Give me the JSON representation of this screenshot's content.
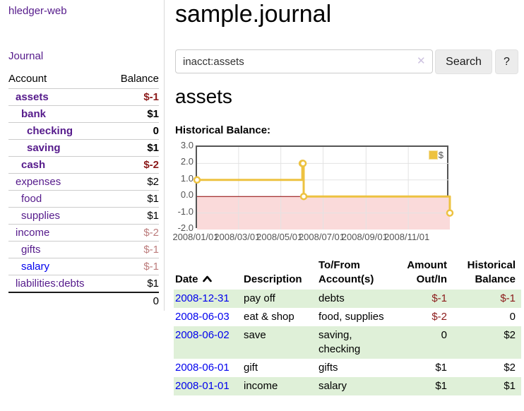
{
  "sidebar": {
    "app_title": "hledger-web",
    "journal_link": "Journal",
    "accounts_header": {
      "account": "Account",
      "balance": "Balance"
    },
    "accounts": [
      {
        "name": "assets",
        "indent": 1,
        "bold": true,
        "balance": "$-1",
        "balance_style": "neg-strong",
        "link_color": "purple"
      },
      {
        "name": "bank",
        "indent": 2,
        "bold": true,
        "balance": "$1",
        "balance_style": "pos",
        "link_color": "purple"
      },
      {
        "name": "checking",
        "indent": 3,
        "bold": true,
        "balance": "0",
        "balance_style": "pos",
        "link_color": "purple"
      },
      {
        "name": "saving",
        "indent": 3,
        "bold": true,
        "balance": "$1",
        "balance_style": "pos",
        "link_color": "purple"
      },
      {
        "name": "cash",
        "indent": 2,
        "bold": true,
        "balance": "$-2",
        "balance_style": "neg-strong",
        "link_color": "purple"
      },
      {
        "name": "expenses",
        "indent": 1,
        "bold": false,
        "balance": "$2",
        "balance_style": "pos",
        "link_color": "purple"
      },
      {
        "name": "food",
        "indent": 2,
        "bold": false,
        "balance": "$1",
        "balance_style": "pos",
        "link_color": "purple"
      },
      {
        "name": "supplies",
        "indent": 2,
        "bold": false,
        "balance": "$1",
        "balance_style": "pos",
        "link_color": "purple"
      },
      {
        "name": "income",
        "indent": 1,
        "bold": false,
        "balance": "$-2",
        "balance_style": "neg-soft",
        "link_color": "purple"
      },
      {
        "name": "gifts",
        "indent": 2,
        "bold": false,
        "balance": "$-1",
        "balance_style": "neg-soft",
        "link_color": "purple"
      },
      {
        "name": "salary",
        "indent": 2,
        "bold": false,
        "balance": "$-1",
        "balance_style": "neg-soft",
        "link_color": "blue"
      },
      {
        "name": "liabilities:debts",
        "indent": 1,
        "bold": false,
        "balance": "$1",
        "balance_style": "pos",
        "link_color": "purple"
      }
    ],
    "total": "0"
  },
  "header": {
    "title": "sample.journal"
  },
  "search": {
    "value": "inacct:assets",
    "clear_icon": "✕",
    "button": "Search",
    "help": "?"
  },
  "main": {
    "account_heading": "assets",
    "chart_label": "Historical Balance:"
  },
  "chart_data": {
    "type": "line",
    "title": "Historical Balance",
    "series": [
      {
        "name": "$",
        "color": "#edc240",
        "step": true,
        "points": [
          {
            "date": "2008-01-01",
            "value": 1
          },
          {
            "date": "2008-06-01",
            "value": 2
          },
          {
            "date": "2008-06-02",
            "value": 2
          },
          {
            "date": "2008-06-03",
            "value": 0
          },
          {
            "date": "2008-12-31",
            "value": -1
          }
        ]
      }
    ],
    "xlim": [
      "2008-01-01",
      "2008-12-31"
    ],
    "ylim": [
      -2,
      3
    ],
    "x_ticks": [
      "2008/01/01",
      "2008/03/01",
      "2008/05/01",
      "2008/07/01",
      "2008/09/01",
      "2008/11/01"
    ],
    "y_ticks": [
      "3.0",
      "2.0",
      "1.0",
      "0.0",
      "-1.0",
      "-2.0"
    ],
    "grid": true,
    "legend_position": "top-right",
    "negative_region_fill": "#fadada",
    "zero_line_color": "#8b0000",
    "grid_color": "#e3e3e3",
    "border_color": "#545454"
  },
  "register": {
    "columns": [
      "Date",
      "Description",
      "To/From Account(s)",
      "Amount Out/In",
      "Historical Balance"
    ],
    "rows": [
      {
        "date": "2008-12-31",
        "description": "pay off",
        "accounts": "debts",
        "amount": "$-1",
        "amount_neg": true,
        "balance": "$-1",
        "balance_neg": true
      },
      {
        "date": "2008-06-03",
        "description": "eat & shop",
        "accounts": "food, supplies",
        "amount": "$-2",
        "amount_neg": true,
        "balance": "0",
        "balance_neg": false
      },
      {
        "date": "2008-06-02",
        "description": "save",
        "accounts": "saving, checking",
        "amount": "0",
        "amount_neg": false,
        "balance": "$2",
        "balance_neg": false
      },
      {
        "date": "2008-06-01",
        "description": "gift",
        "accounts": "gifts",
        "amount": "$1",
        "amount_neg": false,
        "balance": "$2",
        "balance_neg": false
      },
      {
        "date": "2008-01-01",
        "description": "income",
        "accounts": "salary",
        "amount": "$1",
        "amount_neg": false,
        "balance": "$1",
        "balance_neg": false
      }
    ]
  },
  "colors": {
    "link_purple": "#551a8b",
    "link_blue": "#0000ee",
    "negative_strong": "#8b1a1a",
    "negative_soft": "#bc7c7c",
    "row_stripe_green": "#dff0d8",
    "series_gold": "#edc240"
  }
}
